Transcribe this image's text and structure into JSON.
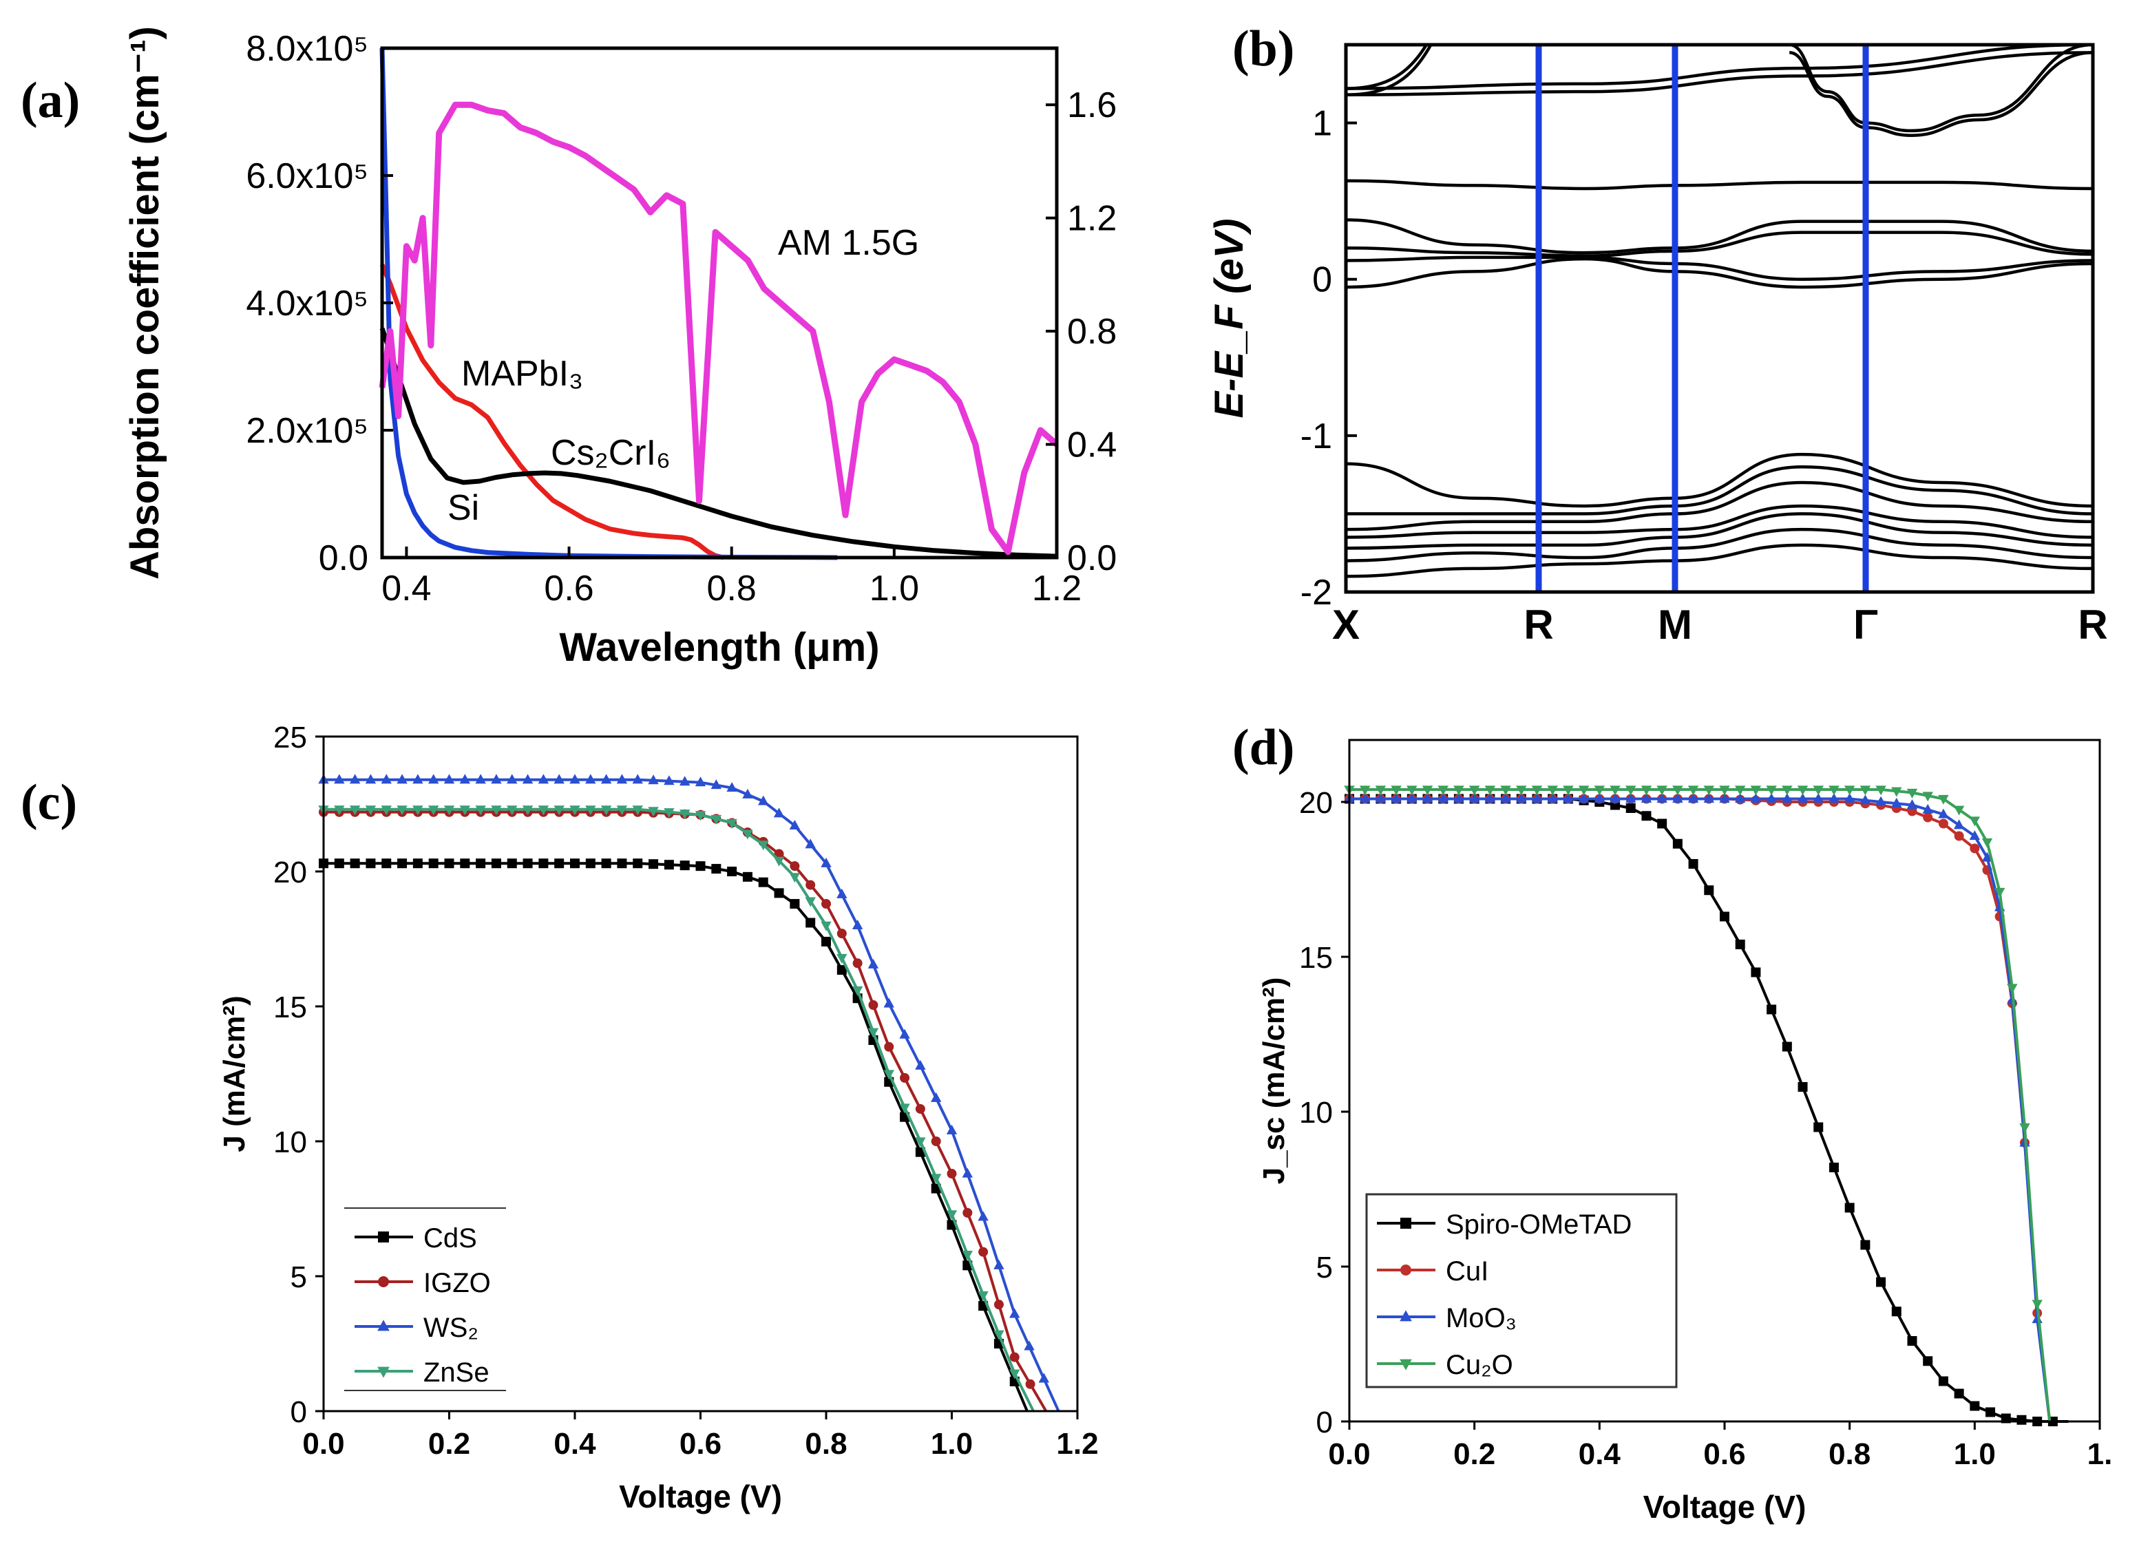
{
  "panels": {
    "a": "(a)",
    "b": "(b)",
    "c": "(c)",
    "d": "(d)"
  },
  "chart_data": [
    {
      "id": "a",
      "type": "line",
      "xlabel": "Wavelength (μm)",
      "ylabel": "Absorption coefficient (cm⁻¹)",
      "xlim": [
        0.37,
        1.2
      ],
      "ylim": [
        0,
        800000.0
      ],
      "y2lim": [
        0,
        1.8
      ],
      "xticks": [
        "0.4",
        "0.6",
        "0.8",
        "1.0",
        "1.2"
      ],
      "yticks": [
        "0.0",
        "2.0x10⁵",
        "4.0x10⁵",
        "6.0x10⁵",
        "8.0x10⁵"
      ],
      "y2ticks": [
        "0.0",
        "0.4",
        "0.8",
        "1.2",
        "1.6"
      ],
      "series": [
        {
          "name": "MAPbI₃",
          "color": "#e8201c",
          "x": [
            0.37,
            0.38,
            0.4,
            0.42,
            0.44,
            0.46,
            0.48,
            0.5,
            0.52,
            0.54,
            0.56,
            0.58,
            0.6,
            0.62,
            0.65,
            0.68,
            0.7,
            0.72,
            0.74,
            0.75,
            0.76,
            0.77,
            0.78,
            0.79
          ],
          "y": [
            460000.0,
            430000.0,
            360000.0,
            310000.0,
            275000.0,
            250000.0,
            240000.0,
            220000.0,
            180000.0,
            145000.0,
            115000.0,
            90000.0,
            75000.0,
            60000.0,
            45000.0,
            38000.0,
            35000.0,
            33000.0,
            31000.0,
            28000.0,
            20000.0,
            10000.0,
            3000.0,
            0
          ]
        },
        {
          "name": "Cs₂CrI₆",
          "color": "#000000",
          "x": [
            0.37,
            0.39,
            0.41,
            0.43,
            0.45,
            0.47,
            0.49,
            0.51,
            0.53,
            0.55,
            0.57,
            0.59,
            0.61,
            0.65,
            0.7,
            0.75,
            0.8,
            0.85,
            0.9,
            0.95,
            1.0,
            1.05,
            1.1,
            1.15,
            1.2
          ],
          "y": [
            360000.0,
            285000.0,
            210000.0,
            155000.0,
            125000.0,
            118000.0,
            120000.0,
            126000.0,
            130000.0,
            132000.0,
            133000.0,
            132000.0,
            129000.0,
            120000.0,
            105000.0,
            85000.0,
            65000.0,
            48000.0,
            35000.0,
            25000.0,
            17000.0,
            11000.0,
            7000.0,
            4000.0,
            2000.0
          ]
        },
        {
          "name": "Si",
          "color": "#1a3fd6",
          "x": [
            0.37,
            0.375,
            0.38,
            0.39,
            0.4,
            0.41,
            0.42,
            0.43,
            0.44,
            0.46,
            0.48,
            0.5,
            0.55,
            0.6,
            0.7,
            0.8,
            0.9,
            0.93
          ],
          "y": [
            800000.0,
            550000.0,
            280000.0,
            160000.0,
            100000.0,
            70000.0,
            50000.0,
            36000.0,
            26000.0,
            16000.0,
            11000.0,
            8000.0,
            5000.0,
            3000.0,
            1500.0,
            700.0,
            200.0,
            0
          ]
        },
        {
          "name": "AM 1.5G",
          "color": "#e838d8",
          "axis": "right",
          "x": [
            0.37,
            0.38,
            0.39,
            0.4,
            0.41,
            0.42,
            0.43,
            0.44,
            0.45,
            0.46,
            0.48,
            0.5,
            0.52,
            0.54,
            0.56,
            0.58,
            0.6,
            0.62,
            0.64,
            0.66,
            0.68,
            0.7,
            0.72,
            0.74,
            0.76,
            0.78,
            0.8,
            0.82,
            0.84,
            0.86,
            0.88,
            0.9,
            0.92,
            0.94,
            0.96,
            0.98,
            1.0,
            1.02,
            1.04,
            1.06,
            1.08,
            1.1,
            1.12,
            1.14,
            1.16,
            1.18,
            1.2
          ],
          "y": [
            0.6,
            0.8,
            0.5,
            1.1,
            1.05,
            1.2,
            0.75,
            1.5,
            1.55,
            1.6,
            1.6,
            1.58,
            1.57,
            1.52,
            1.5,
            1.47,
            1.45,
            1.42,
            1.38,
            1.34,
            1.3,
            1.22,
            1.28,
            1.25,
            0.2,
            1.15,
            1.1,
            1.05,
            0.95,
            0.9,
            0.85,
            0.8,
            0.55,
            0.15,
            0.55,
            0.65,
            0.7,
            0.68,
            0.66,
            0.62,
            0.55,
            0.4,
            0.1,
            0.02,
            0.3,
            0.45,
            0.4
          ]
        }
      ]
    },
    {
      "id": "b",
      "type": "line",
      "ylabel": "E-E_F (eV)",
      "ylim": [
        -2,
        1.5
      ],
      "yticks": [
        "-2",
        "-1",
        "0",
        "1"
      ],
      "kpoints": [
        "X",
        "R",
        "M",
        "Γ",
        "R"
      ],
      "bands": [
        [
          1.22,
          1.25,
          1.35,
          1.5
        ],
        [
          1.18,
          1.2,
          1.3,
          1.45
        ],
        [
          0.63,
          0.6,
          0.58,
          0.6,
          0.62,
          0.62,
          0.58
        ],
        [
          0.38,
          0.22,
          0.17,
          0.2,
          0.37,
          0.37,
          0.18
        ],
        [
          0.2,
          0.17,
          0.15,
          0.18,
          0.3,
          0.3,
          0.16
        ],
        [
          0.12,
          0.14,
          0.14,
          0.1,
          0.0,
          0.05,
          0.12
        ],
        [
          -0.05,
          0.05,
          0.13,
          0.05,
          -0.05,
          0.0,
          0.1
        ],
        [
          -1.18,
          -1.4,
          -1.45,
          -1.4,
          -1.12,
          -1.3,
          -1.45
        ],
        [
          -1.5,
          -1.5,
          -1.5,
          -1.45,
          -1.2,
          -1.35,
          -1.5
        ],
        [
          -1.6,
          -1.55,
          -1.55,
          -1.5,
          -1.3,
          -1.45,
          -1.55
        ],
        [
          -1.65,
          -1.62,
          -1.62,
          -1.6,
          -1.45,
          -1.55,
          -1.65
        ],
        [
          -1.72,
          -1.7,
          -1.7,
          -1.65,
          -1.5,
          -1.62,
          -1.7
        ],
        [
          -1.8,
          -1.75,
          -1.78,
          -1.72,
          -1.6,
          -1.7,
          -1.78
        ],
        [
          -1.9,
          -1.85,
          -1.82,
          -1.8,
          -1.7,
          -1.78,
          -1.85
        ]
      ],
      "conduction": [
        {
          "k": [
            2.6,
            2.8,
            3.0,
            3.2,
            3.5,
            4.0
          ],
          "e": [
            1.5,
            1.2,
            1.0,
            0.95,
            1.05,
            1.5
          ]
        },
        {
          "k": [
            2.6,
            2.8,
            3.0,
            3.2,
            3.5,
            4.0
          ],
          "e": [
            1.45,
            1.17,
            0.97,
            0.92,
            1.02,
            1.45
          ]
        }
      ]
    },
    {
      "id": "c",
      "type": "line",
      "xlabel": "Voltage (V)",
      "ylabel": "J (mA/cm²)",
      "xlim": [
        0,
        1.2
      ],
      "ylim": [
        0,
        25
      ],
      "xticks": [
        "0.0",
        "0.2",
        "0.4",
        "0.6",
        "0.8",
        "1.0",
        "1.2"
      ],
      "yticks": [
        "0",
        "5",
        "10",
        "15",
        "20",
        "25"
      ],
      "series": [
        {
          "name": "CdS",
          "color": "#000000",
          "marker": "square",
          "x": [
            0.0,
            0.1,
            0.2,
            0.3,
            0.4,
            0.5,
            0.6,
            0.65,
            0.7,
            0.75,
            0.8,
            0.85,
            0.9,
            0.95,
            1.0,
            1.05,
            1.1,
            1.12
          ],
          "y": [
            20.3,
            20.3,
            20.3,
            20.3,
            20.3,
            20.3,
            20.2,
            20.0,
            19.6,
            18.8,
            17.4,
            15.3,
            12.2,
            9.6,
            6.9,
            3.9,
            1.1,
            0
          ]
        },
        {
          "name": "IGZO",
          "color": "#a52020",
          "marker": "circle",
          "x": [
            0.0,
            0.1,
            0.2,
            0.3,
            0.4,
            0.5,
            0.6,
            0.65,
            0.7,
            0.75,
            0.8,
            0.85,
            0.9,
            0.95,
            1.0,
            1.05,
            1.1,
            1.15
          ],
          "y": [
            22.2,
            22.2,
            22.2,
            22.2,
            22.2,
            22.2,
            22.1,
            21.8,
            21.1,
            20.2,
            18.8,
            16.6,
            13.5,
            11.2,
            8.8,
            5.9,
            2.0,
            0
          ]
        },
        {
          "name": "WS₂",
          "color": "#2a4fd0",
          "marker": "triangle",
          "x": [
            0.0,
            0.1,
            0.2,
            0.3,
            0.4,
            0.5,
            0.6,
            0.65,
            0.7,
            0.75,
            0.8,
            0.85,
            0.9,
            0.95,
            1.0,
            1.05,
            1.1,
            1.17
          ],
          "y": [
            23.4,
            23.4,
            23.4,
            23.4,
            23.4,
            23.4,
            23.3,
            23.1,
            22.6,
            21.7,
            20.3,
            18.0,
            15.1,
            12.8,
            10.4,
            7.2,
            3.6,
            0
          ]
        },
        {
          "name": "ZnSe",
          "color": "#3aa078",
          "marker": "triangle-down",
          "x": [
            0.0,
            0.1,
            0.2,
            0.3,
            0.4,
            0.5,
            0.6,
            0.65,
            0.7,
            0.75,
            0.8,
            0.85,
            0.9,
            0.95,
            1.0,
            1.05,
            1.1,
            1.13
          ],
          "y": [
            22.3,
            22.3,
            22.3,
            22.3,
            22.3,
            22.3,
            22.1,
            21.8,
            21.0,
            19.8,
            18.0,
            15.6,
            12.5,
            10.0,
            7.3,
            4.3,
            1.4,
            0
          ]
        }
      ]
    },
    {
      "id": "d",
      "type": "line",
      "xlabel": "Voltage (V)",
      "ylabel": "J_sc (mA/cm²)",
      "xlim": [
        0,
        1.2
      ],
      "ylim": [
        0,
        22
      ],
      "xticks": [
        "0.0",
        "0.2",
        "0.4",
        "0.6",
        "0.8",
        "1.0",
        "1."
      ],
      "yticks": [
        "0",
        "5",
        "10",
        "15",
        "20"
      ],
      "series": [
        {
          "name": "Spiro-OMeTAD",
          "color": "#000000",
          "marker": "square",
          "x": [
            0.0,
            0.1,
            0.2,
            0.3,
            0.35,
            0.4,
            0.45,
            0.5,
            0.55,
            0.6,
            0.65,
            0.7,
            0.75,
            0.8,
            0.85,
            0.9,
            0.95,
            1.0,
            1.05,
            1.1,
            1.15
          ],
          "y": [
            20.1,
            20.1,
            20.1,
            20.1,
            20.1,
            20.0,
            19.8,
            19.3,
            18.0,
            16.3,
            14.5,
            12.1,
            9.5,
            6.9,
            4.5,
            2.6,
            1.3,
            0.5,
            0.1,
            0.0,
            0.0
          ]
        },
        {
          "name": "CuI",
          "color": "#c0302a",
          "marker": "circle",
          "x": [
            0.0,
            0.1,
            0.2,
            0.3,
            0.4,
            0.5,
            0.6,
            0.7,
            0.8,
            0.85,
            0.9,
            0.95,
            1.0,
            1.02,
            1.04,
            1.06,
            1.08,
            1.1,
            1.12
          ],
          "y": [
            20.1,
            20.1,
            20.1,
            20.1,
            20.1,
            20.1,
            20.1,
            20.0,
            20.0,
            19.9,
            19.7,
            19.3,
            18.5,
            17.8,
            16.3,
            13.5,
            9.0,
            3.5,
            0
          ]
        },
        {
          "name": "MoO₃",
          "color": "#2a4fd0",
          "marker": "triangle",
          "x": [
            0.0,
            0.1,
            0.2,
            0.3,
            0.4,
            0.5,
            0.6,
            0.7,
            0.8,
            0.85,
            0.9,
            0.95,
            1.0,
            1.02,
            1.04,
            1.06,
            1.08,
            1.1,
            1.12
          ],
          "y": [
            20.1,
            20.1,
            20.1,
            20.1,
            20.1,
            20.1,
            20.1,
            20.1,
            20.1,
            20.0,
            19.9,
            19.6,
            18.9,
            18.2,
            16.6,
            13.6,
            9.0,
            3.3,
            0
          ]
        },
        {
          "name": "Cu₂O",
          "color": "#3aa05a",
          "marker": "triangle-down",
          "x": [
            0.0,
            0.1,
            0.2,
            0.3,
            0.4,
            0.5,
            0.6,
            0.7,
            0.8,
            0.85,
            0.9,
            0.95,
            1.0,
            1.02,
            1.04,
            1.06,
            1.08,
            1.1,
            1.12
          ],
          "y": [
            20.4,
            20.4,
            20.4,
            20.4,
            20.4,
            20.4,
            20.4,
            20.4,
            20.4,
            20.4,
            20.3,
            20.1,
            19.4,
            18.7,
            17.1,
            14.0,
            9.5,
            3.8,
            0
          ]
        }
      ]
    }
  ]
}
